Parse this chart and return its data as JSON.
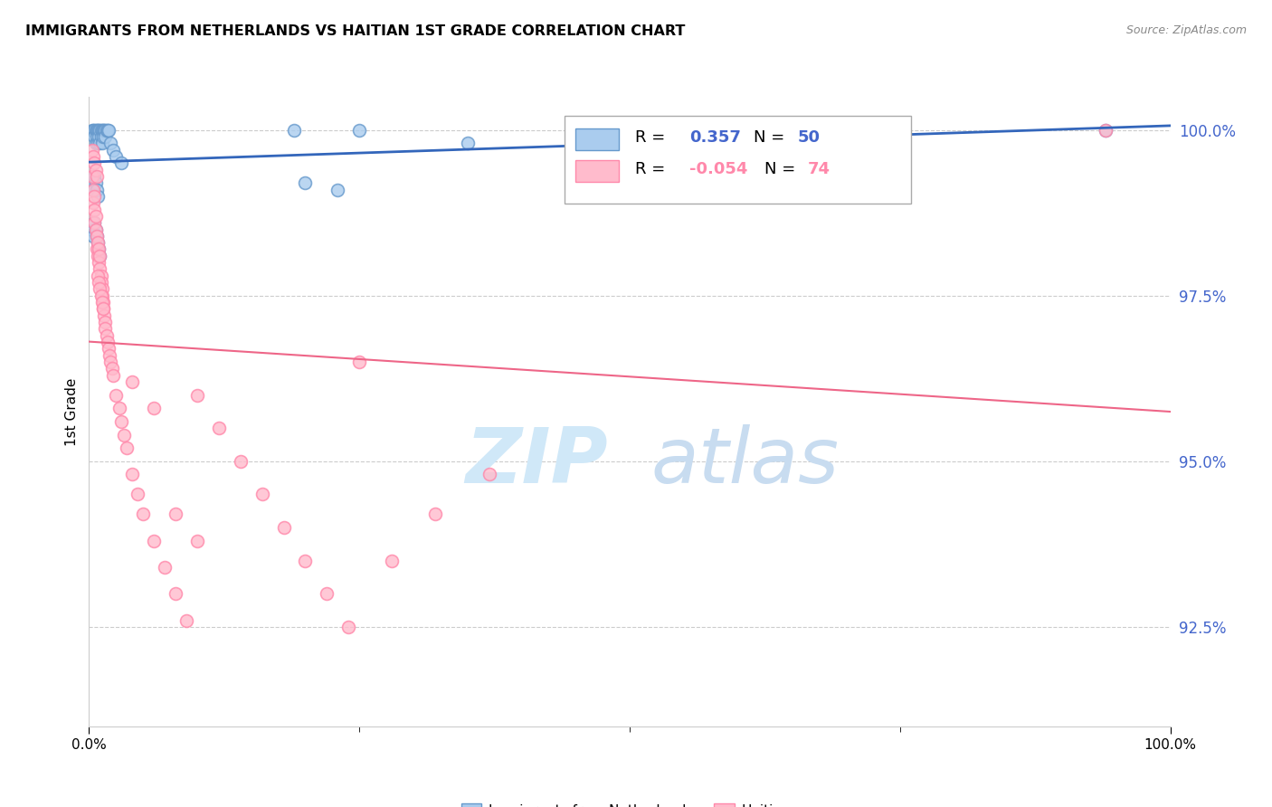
{
  "title": "IMMIGRANTS FROM NETHERLANDS VS HAITIAN 1ST GRADE CORRELATION CHART",
  "source": "Source: ZipAtlas.com",
  "ylabel": "1st Grade",
  "legend_netherlands_R": "0.357",
  "legend_netherlands_N": "50",
  "legend_haitians_R": "-0.054",
  "legend_haitians_N": "74",
  "blue_dot_face": "#AACCEE",
  "blue_dot_edge": "#6699CC",
  "pink_dot_face": "#FFBBCC",
  "pink_dot_edge": "#FF88AA",
  "blue_line_color": "#3366BB",
  "pink_line_color": "#EE6688",
  "ytick_color": "#4466CC",
  "grid_color": "#CCCCCC",
  "y_min": 0.91,
  "y_max": 1.005,
  "y_ticks": [
    0.925,
    0.95,
    0.975,
    1.0
  ],
  "y_tick_labels": [
    "92.5%",
    "95.0%",
    "97.5%",
    "100.0%"
  ],
  "blue_x": [
    0.003,
    0.004,
    0.005,
    0.005,
    0.006,
    0.006,
    0.007,
    0.007,
    0.008,
    0.008,
    0.009,
    0.009,
    0.01,
    0.01,
    0.011,
    0.011,
    0.012,
    0.012,
    0.013,
    0.013,
    0.014,
    0.015,
    0.015,
    0.016,
    0.017,
    0.018,
    0.003,
    0.004,
    0.005,
    0.006,
    0.007,
    0.008,
    0.02,
    0.022,
    0.025,
    0.03,
    0.003,
    0.004,
    0.005,
    0.006,
    0.007,
    0.008,
    0.009,
    0.01,
    0.19,
    0.25,
    0.2,
    0.23,
    0.94,
    0.35
  ],
  "blue_y": [
    1.0,
    1.0,
    1.0,
    0.999,
    1.0,
    0.998,
    1.0,
    0.999,
    1.0,
    0.998,
    1.0,
    0.999,
    1.0,
    0.998,
    1.0,
    0.999,
    1.0,
    0.998,
    1.0,
    0.999,
    1.0,
    1.0,
    0.999,
    1.0,
    1.0,
    1.0,
    0.992,
    0.991,
    0.993,
    0.992,
    0.991,
    0.99,
    0.998,
    0.997,
    0.996,
    0.995,
    0.985,
    0.984,
    0.986,
    0.985,
    0.984,
    0.983,
    0.982,
    0.981,
    1.0,
    1.0,
    0.992,
    0.991,
    1.0,
    0.998
  ],
  "pink_x": [
    0.003,
    0.004,
    0.004,
    0.005,
    0.005,
    0.005,
    0.006,
    0.006,
    0.007,
    0.007,
    0.008,
    0.008,
    0.009,
    0.009,
    0.01,
    0.01,
    0.011,
    0.011,
    0.012,
    0.012,
    0.013,
    0.013,
    0.014,
    0.015,
    0.015,
    0.016,
    0.017,
    0.018,
    0.019,
    0.02,
    0.021,
    0.022,
    0.025,
    0.028,
    0.03,
    0.032,
    0.035,
    0.04,
    0.045,
    0.05,
    0.06,
    0.07,
    0.08,
    0.09,
    0.1,
    0.12,
    0.14,
    0.16,
    0.18,
    0.2,
    0.22,
    0.24,
    0.28,
    0.32,
    0.37,
    0.003,
    0.004,
    0.005,
    0.006,
    0.007,
    0.008,
    0.009,
    0.01,
    0.011,
    0.012,
    0.013,
    0.6,
    0.65,
    0.94,
    0.25,
    0.04,
    0.06,
    0.08,
    0.1
  ],
  "pink_y": [
    0.993,
    0.991,
    0.989,
    0.99,
    0.988,
    0.986,
    0.987,
    0.985,
    0.984,
    0.982,
    0.983,
    0.981,
    0.982,
    0.98,
    0.981,
    0.979,
    0.978,
    0.977,
    0.976,
    0.975,
    0.974,
    0.973,
    0.972,
    0.971,
    0.97,
    0.969,
    0.968,
    0.967,
    0.966,
    0.965,
    0.964,
    0.963,
    0.96,
    0.958,
    0.956,
    0.954,
    0.952,
    0.948,
    0.945,
    0.942,
    0.938,
    0.934,
    0.93,
    0.926,
    0.96,
    0.955,
    0.95,
    0.945,
    0.94,
    0.935,
    0.93,
    0.925,
    0.935,
    0.942,
    0.948,
    0.997,
    0.996,
    0.995,
    0.994,
    0.993,
    0.978,
    0.977,
    0.976,
    0.975,
    0.974,
    0.973,
    0.992,
    0.99,
    1.0,
    0.965,
    0.962,
    0.958,
    0.942,
    0.938
  ]
}
